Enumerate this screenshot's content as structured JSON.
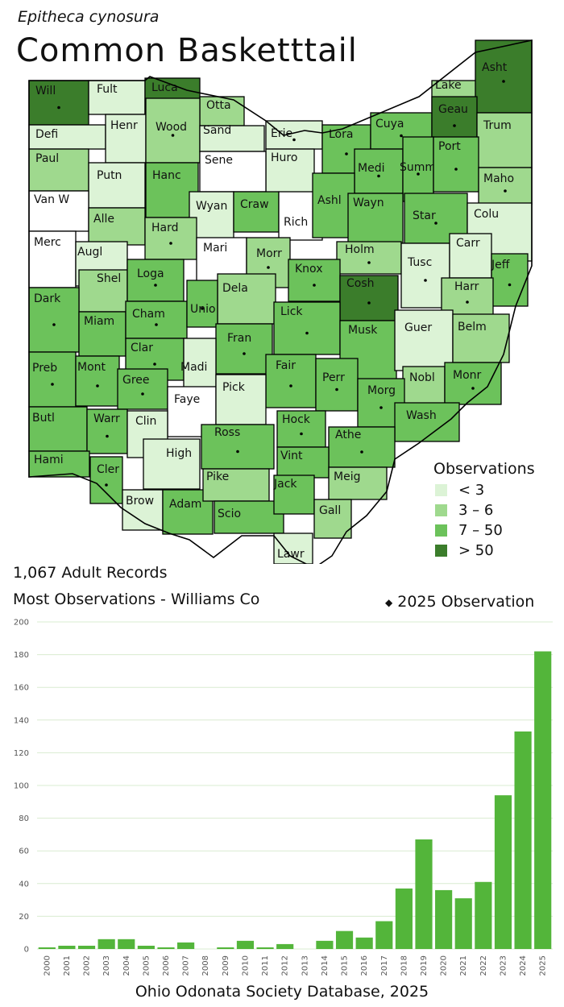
{
  "map": {
    "species_scientific": "Epitheca cynosura",
    "species_common": "Common Basketttail",
    "records_text": "1,067 Adult Records",
    "most_obs_text": "Most Observations - Williams Co",
    "obs_2025_text": "2025 Observation",
    "legend": {
      "title": "Observations",
      "items": [
        {
          "label": "< 3",
          "color": "#dcf3d6"
        },
        {
          "label": "3 – 6",
          "color": "#9fd98e"
        },
        {
          "label": "7 – 50",
          "color": "#6cc25b"
        },
        {
          "label": "> 50",
          "color": "#3b7d2b"
        }
      ]
    },
    "county_labels": [
      "Will",
      "Fult",
      "Luca",
      "Otta",
      "Defi",
      "Henr",
      "Wood",
      "Sand",
      "Erie",
      "Huro",
      "Lora",
      "Cuya",
      "Lake",
      "Asht",
      "Geau",
      "Trum",
      "Paul",
      "Putn",
      "Hanc",
      "Sene",
      "Medi",
      "Summ",
      "Port",
      "Maho",
      "Van W",
      "Alle",
      "Wyan",
      "Craw",
      "Rich",
      "Ashl",
      "Wayn",
      "Star",
      "Colu",
      "Merc",
      "Augl",
      "Hard",
      "Mari",
      "Morr",
      "Holm",
      "Tusc",
      "Carr",
      "Jeff",
      "Shel",
      "Loga",
      "Dela",
      "Knox",
      "Cosh",
      "Harr",
      "Dark",
      "Miam",
      "Cham",
      "Unio",
      "Lick",
      "Musk",
      "Guer",
      "Belm",
      "Clar",
      "Fran",
      "Madi",
      "Fair",
      "Perr",
      "Nobl",
      "Monr",
      "Preb",
      "Mont",
      "Gree",
      "Faye",
      "Pick",
      "Morg",
      "Wash",
      "Butl",
      "Warr",
      "Clin",
      "Ross",
      "Hock",
      "Athe",
      "Hami",
      "Cler",
      "High",
      "Vint",
      "Meig",
      "Brow",
      "Adam",
      "Pike",
      "Scio",
      "Jack",
      "Gall",
      "Lawr"
    ]
  },
  "chart_data": {
    "type": "bar",
    "title": "",
    "xlabel": "",
    "ylabel": "",
    "ylim": [
      0,
      200
    ],
    "yticks": [
      0,
      20,
      40,
      60,
      80,
      100,
      120,
      140,
      160,
      180,
      200
    ],
    "grid": true,
    "color": "#53b53a",
    "categories": [
      "2000",
      "2001",
      "2002",
      "2003",
      "2004",
      "2005",
      "2006",
      "2007",
      "2008",
      "2009",
      "2010",
      "2011",
      "2012",
      "2013",
      "2014",
      "2015",
      "2016",
      "2017",
      "2018",
      "2019",
      "2020",
      "2021",
      "2022",
      "2023",
      "2024",
      "2025"
    ],
    "values": [
      1,
      2,
      2,
      6,
      6,
      2,
      1,
      4,
      0,
      1,
      5,
      1,
      3,
      0,
      5,
      11,
      7,
      17,
      37,
      67,
      36,
      31,
      41,
      94,
      133,
      182
    ]
  },
  "footer": {
    "source": "Ohio Odonata Society Database, 2025"
  }
}
